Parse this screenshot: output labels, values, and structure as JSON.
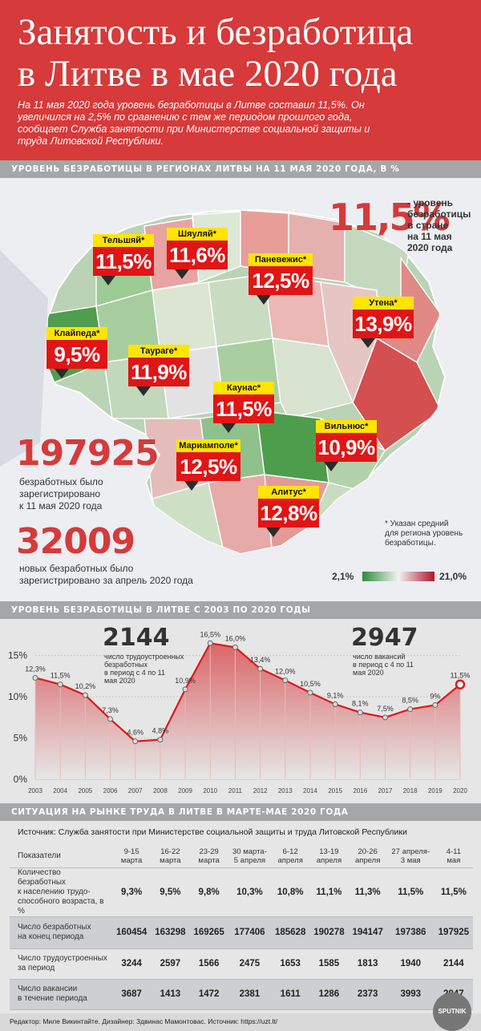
{
  "header": {
    "title_line1": "Занятость и безработица",
    "title_line2": "в Литве в мае 2020 года",
    "intro": "На 11 мая 2020 года уровень безработицы в Литве составил 11,5%. Он увеличился на 2,5% по сравнению с тем же периодом прошлого года, сообщает Служба занятости при Министерстве социальной защиты и труда Литовской Республики."
  },
  "section1": {
    "title": "УРОВЕНЬ БЕЗРАБОТИЦЫ В РЕГИОНАХ ЛИТВЫ НА 11 МАЯ 2020 ГОДА, В %"
  },
  "section2": {
    "title": "УРОВЕНЬ БЕЗРАБОТИЦЫ В ЛИТВЕ С 2003 ПО 2020 ГОДЫ"
  },
  "section3": {
    "title": "СИТУАЦИЯ НА РЫНКЕ ТРУДА В ЛИТВЕ В МАРТЕ-МАЕ 2020 ГОДА"
  },
  "national": {
    "value": "11,5%",
    "caption_lines": [
      "- уровень",
      "безработицы",
      "в стране",
      "на 11 мая",
      "2020 года"
    ]
  },
  "registered": {
    "value": "197925",
    "caption_lines": [
      "безработных было",
      "зарегистрировано",
      "к 11 мая 2020 года"
    ]
  },
  "new_registered": {
    "value": "32009",
    "caption_lines": [
      "новых безработных было",
      "зарегистрировано за апрель 2020 года"
    ]
  },
  "note_lines": [
    "* Указан средний",
    "для региона уровень",
    "безработицы."
  ],
  "legend": {
    "min": "2,1%",
    "max": "21,0%",
    "color_low": "#2e8b3a",
    "color_mid": "#f2f2f2",
    "color_high": "#b0152a"
  },
  "regions": [
    {
      "name": "Тельшяй*",
      "value": "11,5%"
    },
    {
      "name": "Шяуляй*",
      "value": "11,6%"
    },
    {
      "name": "Паневежис*",
      "value": "12,5%"
    },
    {
      "name": "Утена*",
      "value": "13,9%"
    },
    {
      "name": "Клайпеда*",
      "value": "9,5%"
    },
    {
      "name": "Таураге*",
      "value": "11,9%"
    },
    {
      "name": "Каунас*",
      "value": "11,5%"
    },
    {
      "name": "Вильнюс*",
      "value": "10,9%"
    },
    {
      "name": "Мариамполе*",
      "value": "12,5%"
    },
    {
      "name": "Алитус*",
      "value": "12,8%"
    }
  ],
  "employed_callout": {
    "value": "2144",
    "caption_lines": [
      "число трудоустроенных",
      "безработных",
      "в период с 4 по 11",
      "мая 2020"
    ]
  },
  "vacancy_callout": {
    "value": "2947",
    "caption_lines": [
      "число вакансий",
      "в период с 4 по 11",
      "мая 2020"
    ]
  },
  "chart_data": {
    "type": "area",
    "x": [
      "2003",
      "2004",
      "2005",
      "2006",
      "2007",
      "2008",
      "2009",
      "2010",
      "2011",
      "2012",
      "2013",
      "2014",
      "2015",
      "2016",
      "2017",
      "2018",
      "2019",
      "2020"
    ],
    "values": [
      12.3,
      11.5,
      10.2,
      7.3,
      4.6,
      4.8,
      10.9,
      16.5,
      16.0,
      13.4,
      12.0,
      10.5,
      9.1,
      8.1,
      7.5,
      8.5,
      9.0,
      11.5
    ],
    "data_labels": [
      "12,3%",
      "11,5%",
      "10,2%",
      "7,3%",
      "4,6%",
      "4,8%",
      "10,9%",
      "16,5%",
      "16,0%",
      "13,4%",
      "12,0%",
      "10,5%",
      "9,1%",
      "8,1%",
      "7,5%",
      "8,5%",
      "9%",
      "11,5%"
    ],
    "y_ticks": [
      "0%",
      "5%",
      "10%",
      "15%"
    ],
    "y_tick_values": [
      0,
      5,
      10,
      15
    ],
    "ylim": [
      0,
      17.5
    ],
    "grid": true,
    "line_color": "#e01818"
  },
  "table": {
    "source": "Источник: Служба занятости при Министерстве социальной защиты и труда Литовской Республики",
    "header_label": "Показатели",
    "periods": [
      [
        "9-15",
        "марта"
      ],
      [
        "16-22",
        "марта"
      ],
      [
        "23-29",
        "марта"
      ],
      [
        "30 марта-",
        "5 апреля"
      ],
      [
        "6-12",
        "апреля"
      ],
      [
        "13-19",
        "апреля"
      ],
      [
        "20-26",
        "апреля"
      ],
      [
        "27 апреля-",
        "3 мая"
      ],
      [
        "4-11",
        "мая"
      ]
    ],
    "rows": [
      {
        "label": [
          "Количество безработных",
          "к населению трудо-",
          "способного возраста, в %"
        ],
        "values": [
          "9,3%",
          "9,5%",
          "9,8%",
          "10,3%",
          "10,8%",
          "11,1%",
          "11,3%",
          "11,5%",
          "11,5%"
        ]
      },
      {
        "label": [
          "Число безработных",
          "на конец периода"
        ],
        "values": [
          "160454",
          "163298",
          "169265",
          "177406",
          "185628",
          "190278",
          "194147",
          "197386",
          "197925"
        ]
      },
      {
        "label": [
          "Число трудоустроенных",
          "за период"
        ],
        "values": [
          "3244",
          "2597",
          "1566",
          "2475",
          "1653",
          "1585",
          "1813",
          "1940",
          "2144"
        ]
      },
      {
        "label": [
          "Число вакансии",
          "в течение периода"
        ],
        "values": [
          "3687",
          "1413",
          "1472",
          "2381",
          "1611",
          "1286",
          "2373",
          "3993",
          "2947"
        ]
      }
    ]
  },
  "footer": {
    "credits": "Редактор: Миле Викинтайте.  Дизайнер: Здвинас Мамонтовас.  Источник: https://uzt.lt/",
    "logo": "SPUTNIK"
  }
}
